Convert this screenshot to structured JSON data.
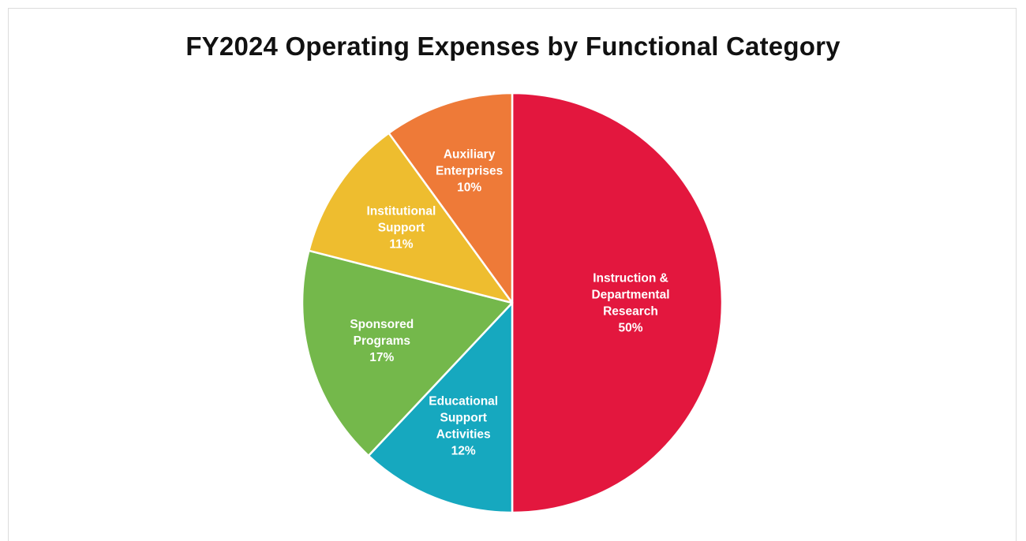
{
  "chart_data": {
    "type": "pie",
    "title": "FY2024 Operating Expenses by Functional Category",
    "start_angle_deg": 0,
    "direction": "clockwise",
    "legend": "none",
    "slices": [
      {
        "name": "Instruction & Departmental Research",
        "label_lines": [
          "Instruction &",
          "Departmental",
          "Research",
          "50%"
        ],
        "value": 50,
        "color": "#e3173e"
      },
      {
        "name": "Educational Support Activities",
        "label_lines": [
          "Educational",
          "Support",
          "Activities",
          "12%"
        ],
        "value": 12,
        "color": "#16a8bf"
      },
      {
        "name": "Sponsored Programs",
        "label_lines": [
          "Sponsored",
          "Programs",
          "17%"
        ],
        "value": 17,
        "color": "#74b84b"
      },
      {
        "name": "Institutional Support",
        "label_lines": [
          "Institutional",
          "Support",
          "11%"
        ],
        "value": 11,
        "color": "#eebd2f"
      },
      {
        "name": "Auxiliary Enterprises",
        "label_lines": [
          "Auxiliary",
          "Enterprises",
          "10%"
        ],
        "value": 10,
        "color": "#ee7a38"
      }
    ]
  }
}
